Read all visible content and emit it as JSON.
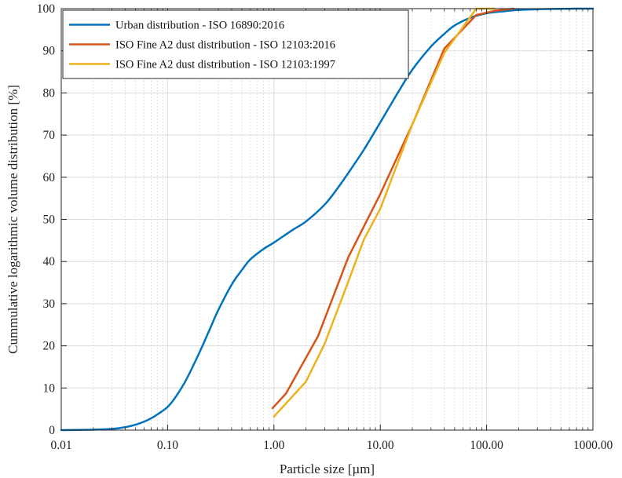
{
  "chart_data": {
    "type": "line",
    "title": "",
    "xlabel": "Particle size [µm]",
    "ylabel": "Cummulative logarithmic volume distribution [%]",
    "xscale": "log",
    "xlim": [
      0.01,
      1000
    ],
    "ylim": [
      0,
      100
    ],
    "xticks": [
      0.01,
      0.1,
      1,
      10,
      100,
      1000
    ],
    "xtick_labels": [
      "0.01",
      "0.10",
      "1.00",
      "10.00",
      "100.00",
      "1000.00"
    ],
    "yticks": [
      0,
      10,
      20,
      30,
      40,
      50,
      60,
      70,
      80,
      90,
      100
    ],
    "ytick_labels": [
      "0",
      "10",
      "20",
      "30",
      "40",
      "50",
      "60",
      "70",
      "80",
      "90",
      "100"
    ],
    "grid": "on, major and minor (log)",
    "legend_position": "top-left",
    "series": [
      {
        "name": "Urban distribution - ISO 16890:2016",
        "color": "#0072BD",
        "smooth": true,
        "x": [
          0.01,
          0.02,
          0.03,
          0.04,
          0.05,
          0.06,
          0.07,
          0.08,
          0.1,
          0.12,
          0.15,
          0.2,
          0.25,
          0.3,
          0.4,
          0.5,
          0.6,
          0.8,
          1.0,
          1.5,
          2,
          3,
          4,
          5,
          7,
          10,
          15,
          20,
          30,
          40,
          50,
          70,
          100,
          150,
          200,
          300,
          500,
          700,
          1000
        ],
        "y": [
          0,
          0.1,
          0.3,
          0.7,
          1.3,
          2.0,
          2.8,
          3.7,
          5.5,
          8.0,
          12.0,
          18.5,
          24.0,
          28.5,
          34.5,
          38.0,
          40.5,
          43.0,
          44.5,
          47.5,
          49.5,
          53.5,
          57.5,
          61.0,
          66.5,
          73.0,
          80.5,
          85.5,
          91.0,
          94.0,
          96.0,
          97.8,
          98.9,
          99.4,
          99.7,
          99.85,
          99.95,
          100,
          100
        ]
      },
      {
        "name": "ISO Fine A2 dust distribution - ISO 12103:2016",
        "color": "#D95319",
        "smooth": false,
        "x": [
          0.97,
          1.3,
          2.6,
          5,
          10,
          20,
          40,
          80,
          120,
          180
        ],
        "y": [
          5.2,
          8.7,
          22.3,
          41,
          56,
          72.5,
          90.5,
          98.5,
          99.5,
          100
        ]
      },
      {
        "name": "ISO Fine A2 dust distribution - ISO 12103:1997",
        "color": "#EDB120",
        "smooth": false,
        "x": [
          1,
          2,
          3,
          5,
          7,
          10,
          20,
          40,
          80,
          120
        ],
        "y": [
          3.2,
          11.5,
          20.5,
          35.2,
          45.2,
          52.5,
          72.5,
          89.5,
          100,
          100
        ]
      }
    ]
  }
}
